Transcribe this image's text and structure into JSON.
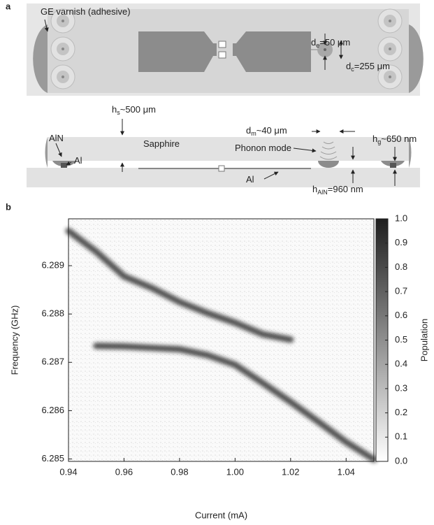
{
  "panel_a": {
    "letter": "a",
    "labels": [
      {
        "parts": [
          "GE varnish (adhesive)"
        ]
      },
      {
        "parts": [
          "d",
          "e",
          "=50 μm"
        ]
      },
      {
        "parts": [
          "d",
          "c",
          "=255 μm"
        ]
      },
      {
        "parts": [
          "h",
          "s",
          "~500 μm"
        ]
      },
      {
        "parts": [
          "d",
          "m",
          "~40 μm"
        ]
      },
      {
        "parts": [
          "h",
          "g",
          "~650 nm"
        ]
      },
      {
        "parts": [
          "AlN"
        ]
      },
      {
        "parts": [
          "Al"
        ]
      },
      {
        "parts": [
          "Sapphire"
        ]
      },
      {
        "parts": [
          "Phonon mode"
        ]
      },
      {
        "parts": [
          "Al"
        ]
      },
      {
        "parts": [
          "h",
          "AlN",
          "=960 nm"
        ]
      }
    ]
  },
  "chart_data": {
    "type": "heatmap",
    "panel": "b",
    "x_label": "Current (mA)",
    "y_label": "Frequency (GHz)",
    "colorbar_label": "Population",
    "xlim": [
      0.94,
      1.05
    ],
    "ylim": [
      6.28495,
      6.28997
    ],
    "xticks": [
      0.94,
      0.96,
      0.98,
      {
        "value": 1.0,
        "label": "1.00"
      },
      1.02,
      1.04
    ],
    "yticks": [
      6.285,
      6.286,
      6.287,
      6.288,
      6.289
    ],
    "zlim": [
      0,
      1
    ],
    "zticks": [
      {
        "value": 0,
        "label": "0.0"
      },
      0.1,
      0.2,
      0.3,
      0.4,
      0.5,
      0.6,
      0.7,
      0.8,
      0.9,
      {
        "value": 1,
        "label": "1.0"
      }
    ],
    "x": [
      0.94,
      0.95,
      0.96,
      0.97,
      0.98,
      0.99,
      1.0,
      1.01,
      1.02,
      1.03,
      1.04,
      1.05
    ],
    "series": [
      {
        "color": "#333333",
        "values": [
          6.28972,
          6.28929,
          6.28878,
          6.28854,
          6.28825,
          6.28802,
          6.28782,
          6.28758,
          6.28747,
          null,
          null,
          null
        ]
      },
      {
        "color": "#333333",
        "values": [
          null,
          6.28734,
          6.28733,
          6.2873,
          6.28727,
          6.28715,
          6.28695,
          6.28657,
          6.28618,
          6.28577,
          6.28535,
          6.28499
        ]
      }
    ]
  }
}
